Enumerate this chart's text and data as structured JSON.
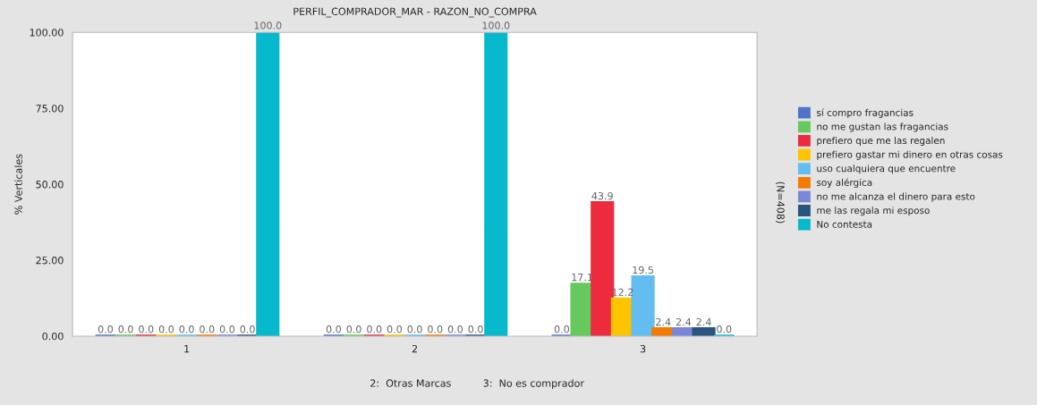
{
  "chart_data": {
    "type": "bar",
    "title": "PERFIL_COMPRADOR_MAR - RAZON_NO_COMPRA",
    "ylabel": "% Verticales",
    "categories": [
      "1",
      "2",
      "3"
    ],
    "series": [
      {
        "name": "sí compro fragancias",
        "color": "#4f73c9",
        "values": [
          0,
          0,
          0
        ],
        "value_labels": [
          "0.0",
          "0.0",
          "0.0"
        ]
      },
      {
        "name": "no me gustan las fragancias",
        "color": "#66c95e",
        "values": [
          0,
          0,
          17.1
        ],
        "value_labels": [
          "0.0",
          "0.0",
          "17.1"
        ]
      },
      {
        "name": "prefiero que me las regalen",
        "color": "#ee2a3f",
        "values": [
          0,
          0,
          43.9
        ],
        "value_labels": [
          "0.0",
          "0.0",
          "43.9"
        ]
      },
      {
        "name": "prefiero gastar mi dinero en otras cosas",
        "color": "#fec400",
        "values": [
          0,
          0,
          12.2
        ],
        "value_labels": [
          "0.0",
          "0.0",
          "12.2"
        ]
      },
      {
        "name": "uso cualquiera que encuentre",
        "color": "#63bdf1",
        "values": [
          0,
          0,
          19.5
        ],
        "value_labels": [
          "0.0",
          "0.0",
          "19.5"
        ]
      },
      {
        "name": "soy alérgica",
        "color": "#f47a00",
        "values": [
          0,
          0,
          2.4
        ],
        "value_labels": [
          "0.0",
          "0.0",
          "2.4"
        ]
      },
      {
        "name": "no me alcanza el dinero para esto",
        "color": "#7a87d8",
        "values": [
          0,
          0,
          2.4
        ],
        "value_labels": [
          "0.0",
          "0.0",
          "2.4"
        ]
      },
      {
        "name": "me las regala mi esposo",
        "color": "#2a5480",
        "values": [
          0,
          0,
          2.4
        ],
        "value_labels": [
          "0.0",
          "0.0",
          "2.4"
        ]
      },
      {
        "name": "No contesta",
        "color": "#07b9cd",
        "values": [
          100,
          100,
          0
        ],
        "value_labels": [
          "100.0",
          "100.0",
          "0.0"
        ]
      }
    ],
    "ylim": [
      0,
      100
    ],
    "yticks": [
      {
        "value": 0,
        "label": "0.00"
      },
      {
        "value": 25,
        "label": "25.00"
      },
      {
        "value": 50,
        "label": "50.00"
      },
      {
        "value": 75,
        "label": "75.00"
      },
      {
        "value": 100,
        "label": "100.00"
      }
    ],
    "grid": false,
    "legend": "right",
    "annotations": [
      "(N=408)",
      "2:  Otras Marcas          3:  No es comprador"
    ]
  }
}
